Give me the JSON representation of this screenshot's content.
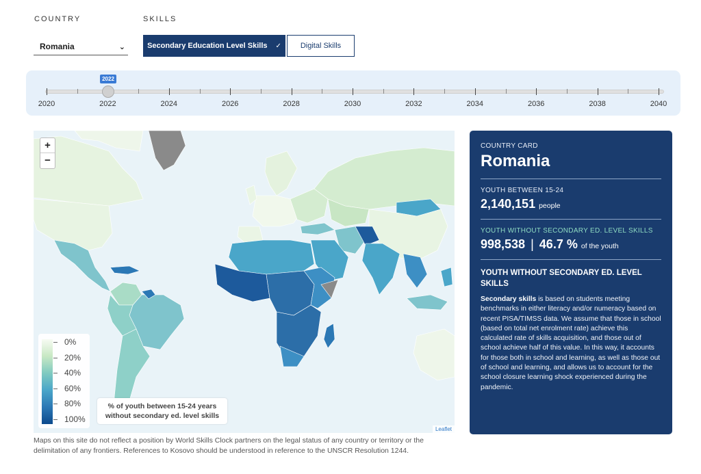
{
  "filters": {
    "country_label": "COUNTRY",
    "skills_label": "SKILLS",
    "country_selected": "Romania",
    "skills_active": "Secondary Education Level Skills",
    "skills_inactive": "Digital Skills"
  },
  "timeline": {
    "selected_year": "2022",
    "years": [
      "2020",
      "2022",
      "2024",
      "2026",
      "2028",
      "2030",
      "2032",
      "2034",
      "2036",
      "2038",
      "2040"
    ]
  },
  "map": {
    "zoom_in": "+",
    "zoom_out": "−",
    "legend_values": [
      "0%",
      "20%",
      "40%",
      "60%",
      "80%",
      "100%"
    ],
    "legend_caption_line1": "% of youth between 15-24 years",
    "legend_caption_line2": "without secondary ed. level skills",
    "attribution": "Leaflet",
    "colors": {
      "ocean": "#e9f3f8",
      "low": "#d4ecd0",
      "mid": "#7fc4cc",
      "high": "#3d8fc4",
      "very_high": "#1d5a9c",
      "no_data": "#8a8a8a"
    }
  },
  "disclaimer": "Maps on this site do not reflect a position by World Skills Clock partners on the legal status of any country or territory or the delimitation of any frontiers. References to Kosovo should be understood in reference to the UNSCR Resolution 1244.",
  "card": {
    "label": "COUNTRY CARD",
    "country": "Romania",
    "youth_label": "YOUTH BETWEEN 15-24",
    "youth_value": "2,140,151",
    "youth_unit": "people",
    "without_label": "YOUTH WITHOUT SECONDARY ED. LEVEL SKILLS",
    "without_value": "998,538",
    "separator": "|",
    "without_pct": "46.7 %",
    "without_unit": "of the youth",
    "section_heading": "YOUTH WITHOUT SECONDARY ED. LEVEL SKILLS",
    "body_bold": "Secondary skills",
    "body_text": " is based on students meeting benchmarks in either literacy and/or numeracy based on recent PISA/TIMSS data. We assume that those in school (based on total net enrolment rate) achieve this calculated rate of skills acquisition, and those out of school achieve half of this value. In this way, it accounts for those both in school and learning, as well as those out of school and learning, and allows us to account for the school closure learning shock experienced during the pandemic."
  }
}
